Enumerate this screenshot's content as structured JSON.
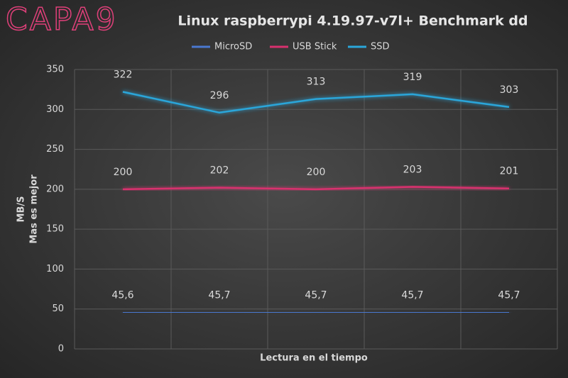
{
  "logo": "CAPA9",
  "chart_data": {
    "type": "line",
    "title": "Linux raspberrypi 4.19.97-v7l+ Benchmark dd",
    "y_label": [
      "MB/S",
      "Mas es mejor"
    ],
    "x_label": "Lectura en el tiempo",
    "categories": [
      null,
      null,
      null,
      null,
      null
    ],
    "series": [
      {
        "name": "MicroSD",
        "color": "#4a78d0",
        "values": [
          45.6,
          45.7,
          45.7,
          45.7,
          45.7
        ],
        "value_labels": [
          "45,6",
          "45,7",
          "45,7",
          "45,7",
          "45,7"
        ]
      },
      {
        "name": "USB Stick",
        "color": "#d8306e",
        "values": [
          200,
          202,
          200,
          203,
          201
        ]
      },
      {
        "name": "SSD",
        "color": "#2aa6da",
        "values": [
          322,
          296,
          313,
          319,
          303
        ]
      }
    ],
    "ylim": [
      0,
      350
    ],
    "yticks": [
      0,
      50,
      100,
      150,
      200,
      250,
      300,
      350
    ],
    "grid": true,
    "legend": "top"
  }
}
